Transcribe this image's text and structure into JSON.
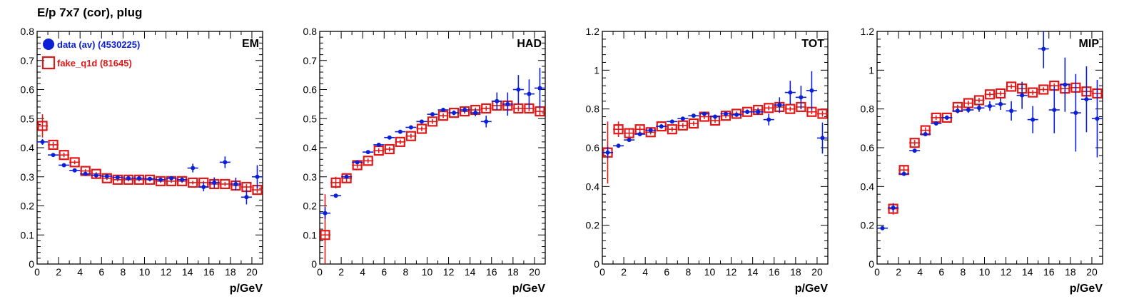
{
  "title": "E/p 7x7 (cor), plug",
  "colors": {
    "data": "#0b1fd6",
    "fake": "#e01818",
    "axis": "#000000"
  },
  "legend": [
    {
      "label": "data (av) (4530225)",
      "marker": "filled-circle",
      "color": "#0b1fd6"
    },
    {
      "label": "fake_q1d (81645)",
      "marker": "open-square",
      "color": "#e01818"
    }
  ],
  "chart_data": [
    {
      "type": "scatter",
      "panel_label": "EM",
      "xlabel": "p/GeV",
      "xlim": [
        0,
        21
      ],
      "ylim": [
        0,
        0.8
      ],
      "xticks": [
        0,
        2,
        4,
        6,
        8,
        10,
        12,
        14,
        16,
        18,
        20
      ],
      "yticks": [
        0,
        0.1,
        0.2,
        0.3,
        0.4,
        0.5,
        0.6,
        0.7,
        0.8
      ],
      "ytick_labels": [
        "0",
        "0.1",
        "0.2",
        "0.3",
        "0.4",
        "0.5",
        "0.6",
        "0.7",
        "0.8"
      ],
      "series": [
        {
          "name": "data (av) (4530225)",
          "x": [
            0.5,
            1.5,
            2.5,
            3.5,
            4.5,
            5.5,
            6.5,
            7.5,
            8.5,
            9.5,
            10.5,
            11.5,
            12.5,
            13.5,
            14.5,
            15.5,
            16.5,
            17.5,
            18.5,
            19.5,
            20.5
          ],
          "y": [
            0.42,
            0.375,
            0.34,
            0.322,
            0.31,
            0.305,
            0.302,
            0.298,
            0.295,
            0.295,
            0.293,
            0.29,
            0.295,
            0.29,
            0.33,
            0.265,
            0.28,
            0.35,
            0.275,
            0.23,
            0.3
          ],
          "yerr": [
            0.01,
            0.005,
            0.004,
            0.004,
            0.004,
            0.004,
            0.004,
            0.004,
            0.004,
            0.005,
            0.005,
            0.005,
            0.006,
            0.008,
            0.015,
            0.015,
            0.018,
            0.02,
            0.022,
            0.025,
            0.04
          ]
        },
        {
          "name": "fake_q1d (81645)",
          "x": [
            0.5,
            1.5,
            2.5,
            3.5,
            4.5,
            5.5,
            6.5,
            7.5,
            8.5,
            9.5,
            10.5,
            11.5,
            12.5,
            13.5,
            14.5,
            15.5,
            16.5,
            17.5,
            18.5,
            19.5,
            20.5
          ],
          "y": [
            0.475,
            0.41,
            0.375,
            0.35,
            0.32,
            0.31,
            0.295,
            0.29,
            0.29,
            0.29,
            0.29,
            0.285,
            0.285,
            0.285,
            0.28,
            0.28,
            0.275,
            0.275,
            0.27,
            0.265,
            0.255
          ],
          "yerr": [
            0.04,
            0.01,
            0.008,
            0.007,
            0.006,
            0.006,
            0.006,
            0.006,
            0.006,
            0.006,
            0.006,
            0.006,
            0.006,
            0.006,
            0.006,
            0.006,
            0.007,
            0.007,
            0.008,
            0.01,
            0.01
          ]
        }
      ]
    },
    {
      "type": "scatter",
      "panel_label": "HAD",
      "xlabel": "p/GeV",
      "xlim": [
        0,
        21
      ],
      "ylim": [
        0,
        0.8
      ],
      "xticks": [
        0,
        2,
        4,
        6,
        8,
        10,
        12,
        14,
        16,
        18,
        20
      ],
      "yticks": [
        0,
        0.1,
        0.2,
        0.3,
        0.4,
        0.5,
        0.6,
        0.7,
        0.8
      ],
      "ytick_labels": [
        "0",
        "0.1",
        "0.2",
        "0.3",
        "0.4",
        "0.5",
        "0.6",
        "0.7",
        "0.8"
      ],
      "series": [
        {
          "name": "data (av) (4530225)",
          "x": [
            0.5,
            1.5,
            2.5,
            3.5,
            4.5,
            5.5,
            6.5,
            7.5,
            8.5,
            9.5,
            10.5,
            11.5,
            12.5,
            13.5,
            14.5,
            15.5,
            16.5,
            17.5,
            18.5,
            19.5,
            20.5
          ],
          "y": [
            0.175,
            0.235,
            0.3,
            0.35,
            0.385,
            0.41,
            0.435,
            0.455,
            0.47,
            0.49,
            0.515,
            0.53,
            0.52,
            0.53,
            0.52,
            0.49,
            0.56,
            0.55,
            0.6,
            0.585,
            0.605
          ],
          "yerr": [
            0.02,
            0.005,
            0.004,
            0.004,
            0.004,
            0.004,
            0.004,
            0.004,
            0.005,
            0.005,
            0.006,
            0.007,
            0.008,
            0.01,
            0.012,
            0.02,
            0.03,
            0.04,
            0.05,
            0.05,
            0.07
          ]
        },
        {
          "name": "fake_q1d (81645)",
          "x": [
            0.5,
            1.5,
            2.5,
            3.5,
            4.5,
            5.5,
            6.5,
            7.5,
            8.5,
            9.5,
            10.5,
            11.5,
            12.5,
            13.5,
            14.5,
            15.5,
            16.5,
            17.5,
            18.5,
            19.5,
            20.5
          ],
          "y": [
            0.1,
            0.28,
            0.295,
            0.34,
            0.355,
            0.39,
            0.395,
            0.42,
            0.44,
            0.465,
            0.49,
            0.51,
            0.52,
            0.525,
            0.53,
            0.535,
            0.545,
            0.545,
            0.535,
            0.535,
            0.525
          ],
          "yerr": [
            0.14,
            0.02,
            0.015,
            0.01,
            0.008,
            0.008,
            0.008,
            0.008,
            0.008,
            0.008,
            0.008,
            0.008,
            0.008,
            0.008,
            0.008,
            0.008,
            0.01,
            0.01,
            0.01,
            0.01,
            0.012
          ]
        }
      ]
    },
    {
      "type": "scatter",
      "panel_label": "TOT",
      "xlabel": "p/GeV",
      "xlim": [
        0,
        21
      ],
      "ylim": [
        0,
        1.2
      ],
      "xticks": [
        0,
        2,
        4,
        6,
        8,
        10,
        12,
        14,
        16,
        18,
        20
      ],
      "yticks": [
        0,
        0.2,
        0.4,
        0.6,
        0.8,
        1.0,
        1.2
      ],
      "ytick_labels": [
        "0",
        "0.2",
        "0.4",
        "0.6",
        "0.8",
        "1",
        "1.2"
      ],
      "series": [
        {
          "name": "data (av) (4530225)",
          "x": [
            0.5,
            1.5,
            2.5,
            3.5,
            4.5,
            5.5,
            6.5,
            7.5,
            8.5,
            9.5,
            10.5,
            11.5,
            12.5,
            13.5,
            14.5,
            15.5,
            16.5,
            17.5,
            18.5,
            19.5,
            20.5
          ],
          "y": [
            0.575,
            0.61,
            0.64,
            0.67,
            0.69,
            0.71,
            0.735,
            0.75,
            0.765,
            0.775,
            0.76,
            0.775,
            0.77,
            0.785,
            0.785,
            0.745,
            0.82,
            0.885,
            0.86,
            0.895,
            0.65
          ],
          "yerr": [
            0.03,
            0.008,
            0.006,
            0.005,
            0.005,
            0.005,
            0.005,
            0.005,
            0.006,
            0.007,
            0.008,
            0.009,
            0.01,
            0.012,
            0.015,
            0.03,
            0.04,
            0.06,
            0.06,
            0.1,
            0.08
          ]
        },
        {
          "name": "fake_q1d (81645)",
          "x": [
            0.5,
            1.5,
            2.5,
            3.5,
            4.5,
            5.5,
            6.5,
            7.5,
            8.5,
            9.5,
            10.5,
            11.5,
            12.5,
            13.5,
            14.5,
            15.5,
            16.5,
            17.5,
            18.5,
            19.5,
            20.5
          ],
          "y": [
            0.575,
            0.695,
            0.675,
            0.695,
            0.68,
            0.71,
            0.695,
            0.715,
            0.725,
            0.76,
            0.74,
            0.765,
            0.775,
            0.785,
            0.795,
            0.805,
            0.81,
            0.8,
            0.81,
            0.785,
            0.775
          ],
          "yerr": [
            0.16,
            0.04,
            0.02,
            0.015,
            0.012,
            0.012,
            0.012,
            0.012,
            0.012,
            0.012,
            0.012,
            0.012,
            0.012,
            0.012,
            0.012,
            0.012,
            0.012,
            0.012,
            0.012,
            0.012,
            0.015
          ]
        }
      ]
    },
    {
      "type": "scatter",
      "panel_label": "MIP",
      "xlabel": "p/GeV",
      "xlim": [
        0,
        21
      ],
      "ylim": [
        0,
        1.2
      ],
      "xticks": [
        0,
        2,
        4,
        6,
        8,
        10,
        12,
        14,
        16,
        18,
        20
      ],
      "yticks": [
        0,
        0.2,
        0.4,
        0.6,
        0.8,
        1.0,
        1.2
      ],
      "ytick_labels": [
        "0",
        "0.2",
        "0.4",
        "0.6",
        "0.8",
        "1",
        "1.2"
      ],
      "series": [
        {
          "name": "data (av) (4530225)",
          "x": [
            0.5,
            1.5,
            2.5,
            3.5,
            4.5,
            5.5,
            6.5,
            7.5,
            8.5,
            9.5,
            10.5,
            11.5,
            12.5,
            13.5,
            14.5,
            15.5,
            16.5,
            17.5,
            18.5,
            19.5,
            20.5
          ],
          "y": [
            0.185,
            0.29,
            0.465,
            0.585,
            0.67,
            0.725,
            0.755,
            0.79,
            0.795,
            0.805,
            0.815,
            0.825,
            0.79,
            0.87,
            0.745,
            1.11,
            0.795,
            0.925,
            0.78,
            0.85,
            0.75
          ],
          "yerr": [
            0.005,
            0.02,
            0.01,
            0.006,
            0.006,
            0.008,
            0.01,
            0.012,
            0.015,
            0.02,
            0.025,
            0.03,
            0.05,
            0.07,
            0.07,
            0.1,
            0.12,
            0.14,
            0.2,
            0.17,
            0.2
          ]
        },
        {
          "name": "fake_q1d (81645)",
          "x": [
            0.5,
            1.5,
            2.5,
            3.5,
            4.5,
            5.5,
            6.5,
            7.5,
            8.5,
            9.5,
            10.5,
            11.5,
            12.5,
            13.5,
            14.5,
            15.5,
            16.5,
            17.5,
            18.5,
            19.5,
            20.5
          ],
          "y": [
            null,
            0.285,
            0.485,
            0.625,
            0.69,
            0.755,
            0.755,
            0.81,
            0.83,
            0.845,
            0.875,
            0.88,
            0.915,
            0.905,
            0.885,
            0.9,
            0.92,
            0.905,
            0.91,
            0.89,
            0.88
          ],
          "yerr": [
            null,
            0.03,
            0.02,
            0.015,
            0.015,
            0.012,
            0.012,
            0.012,
            0.012,
            0.012,
            0.012,
            0.012,
            0.012,
            0.012,
            0.012,
            0.012,
            0.012,
            0.012,
            0.012,
            0.012,
            0.015
          ]
        }
      ]
    }
  ]
}
